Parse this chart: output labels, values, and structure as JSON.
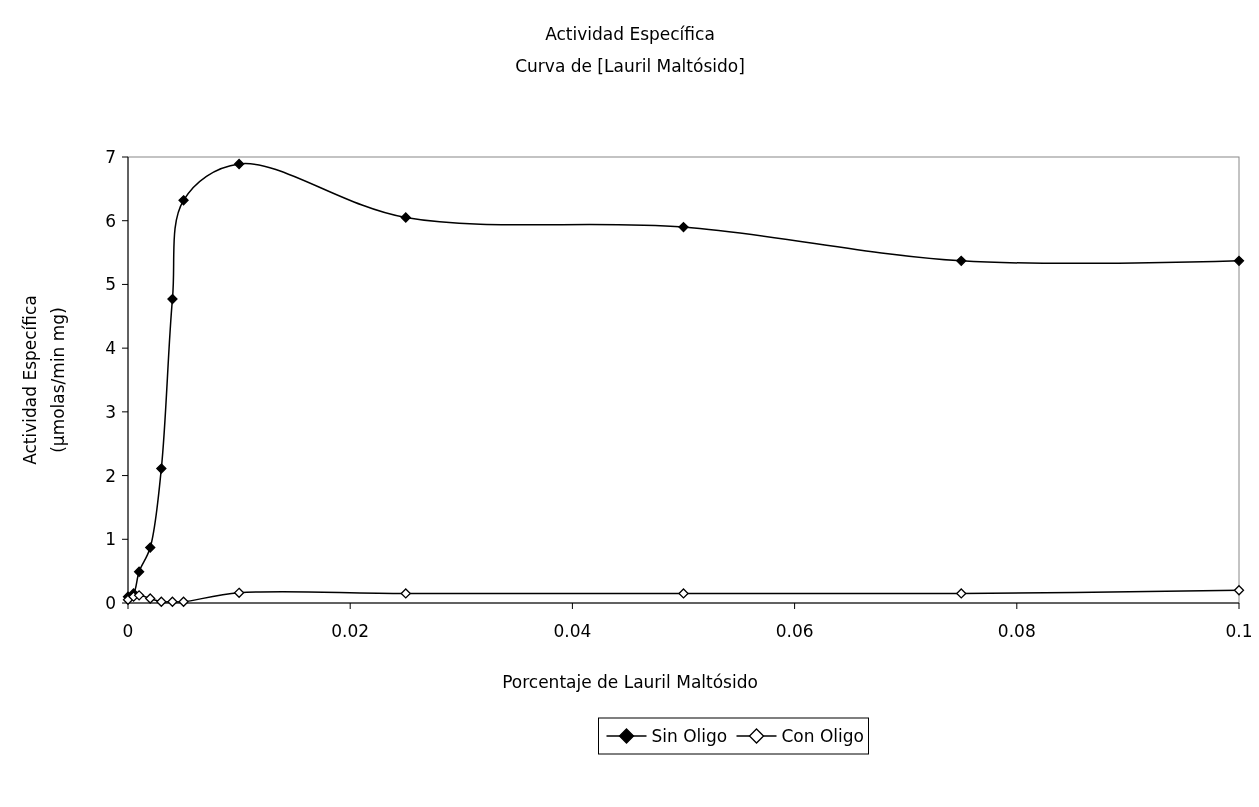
{
  "chart_data": {
    "type": "line",
    "title": "Actividad Específica",
    "subtitle": "Curva de [Lauril Maltósido]",
    "xlabel": "Porcentaje de Lauril Maltósido",
    "ylabel": "Actividad Específica (µmolas/min mg)",
    "x": [
      0,
      0.0005,
      0.001,
      0.002,
      0.003,
      0.004,
      0.005,
      0.01,
      0.025,
      0.05,
      0.075,
      0.1
    ],
    "series": [
      {
        "name": "Sin Oligo",
        "color": "#000000",
        "values": [
          0.1,
          0.15,
          0.49,
          0.87,
          2.11,
          4.77,
          6.32,
          6.89,
          6.05,
          5.9,
          5.37,
          5.37
        ]
      },
      {
        "name": "Con Oligo",
        "color": "#ffffff",
        "values": [
          0.05,
          0.1,
          0.12,
          0.07,
          0.02,
          0.02,
          0.02,
          0.16,
          0.15,
          0.15,
          0.15,
          0.2
        ]
      }
    ],
    "xlim": [
      0,
      0.1
    ],
    "xticks": [
      0,
      0.02,
      0.04,
      0.06,
      0.08,
      0.1
    ],
    "ylim": [
      0,
      7
    ],
    "yticks": [
      0,
      1,
      2,
      3,
      4,
      5,
      6,
      7
    ],
    "grid": false,
    "legend": "bottom",
    "marker": "diamond",
    "line_style": "solid"
  }
}
